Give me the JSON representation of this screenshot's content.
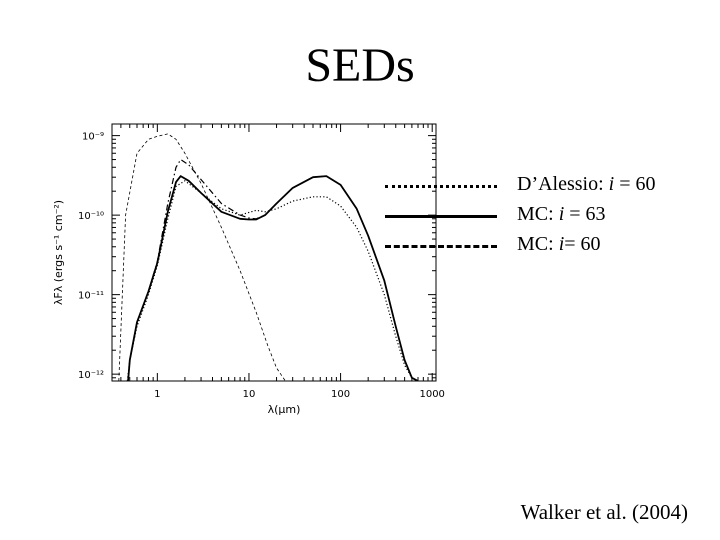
{
  "slide": {
    "title": "SEDs",
    "citation": "Walker et al. (2004)"
  },
  "legend": [
    {
      "prefix": "D’Alessio: ",
      "var": "i",
      "suffix": " = 60",
      "style": "dotted"
    },
    {
      "prefix": "MC: ",
      "var": "i",
      "suffix": " = 63",
      "style": "solid"
    },
    {
      "prefix": "MC: ",
      "var": "i",
      "suffix": "= 60",
      "style": "dashdot"
    }
  ],
  "chart_data": {
    "type": "line",
    "xscale": "log",
    "yscale": "log",
    "xlim": [
      0.32,
      1100
    ],
    "ylim": [
      8.2e-13,
      1.4e-09
    ],
    "xticks": [
      {
        "value": 1,
        "label": "1"
      },
      {
        "value": 10,
        "label": "10"
      },
      {
        "value": 100,
        "label": "100"
      },
      {
        "value": 1000,
        "label": "1000"
      }
    ],
    "yticks": [
      {
        "value": 1e-12,
        "label": "10⁻¹²"
      },
      {
        "value": 1e-11,
        "label": "10⁻¹¹"
      },
      {
        "value": 1e-10,
        "label": "10⁻¹⁰"
      },
      {
        "value": 1e-09,
        "label": "10⁻⁹"
      }
    ],
    "xlabel": "λ(μm)",
    "ylabel": "λFλ (ergs s⁻¹ cm⁻²)",
    "grid": false,
    "series": [
      {
        "style": "dotted",
        "x": [
          0.47,
          0.5,
          0.6,
          0.8,
          1.0,
          1.3,
          1.6,
          2.0,
          3.0,
          5.0,
          8.0,
          12,
          15,
          20,
          30,
          50,
          70,
          100,
          150,
          200,
          300,
          400,
          500,
          600,
          700
        ],
        "y": [
          8.2e-13,
          1.5e-12,
          4e-12,
          1e-11,
          2.3e-11,
          9e-11,
          2.3e-10,
          2.7e-10,
          1.9e-10,
          1.2e-10,
          1e-10,
          1.15e-10,
          1.1e-10,
          1.2e-10,
          1.5e-10,
          1.7e-10,
          1.7e-10,
          1.3e-10,
          7e-11,
          3.5e-11,
          1e-11,
          3e-12,
          1.3e-12,
          9e-13,
          8.2e-13
        ]
      },
      {
        "style": "solid",
        "x": [
          0.48,
          0.5,
          0.6,
          0.8,
          1.0,
          1.3,
          1.6,
          1.8,
          2.2,
          3.0,
          5.0,
          8.0,
          10,
          12,
          15,
          20,
          30,
          50,
          70,
          100,
          150,
          200,
          300,
          400,
          500,
          600,
          700
        ],
        "y": [
          8.2e-13,
          1.5e-12,
          4.5e-12,
          1.1e-11,
          2.5e-11,
          1.1e-10,
          2.6e-10,
          3.1e-10,
          2.7e-10,
          1.9e-10,
          1.1e-10,
          9e-11,
          8.8e-11,
          8.8e-11,
          1e-10,
          1.4e-10,
          2.2e-10,
          3e-10,
          3.1e-10,
          2.4e-10,
          1.2e-10,
          5.5e-11,
          1.5e-11,
          4e-12,
          1.5e-12,
          9e-13,
          8.2e-13
        ]
      },
      {
        "style": "dashdot",
        "x": [
          0.48,
          0.5,
          0.6,
          0.8,
          1.0,
          1.3,
          1.6,
          1.8,
          2.2,
          3.0,
          5.0,
          8.0,
          10,
          12,
          15,
          20,
          30,
          50,
          70,
          100,
          150,
          200,
          300,
          400,
          500,
          600,
          700
        ],
        "y": [
          8.2e-13,
          1.5e-12,
          4.5e-12,
          1.1e-11,
          2.6e-11,
          1.4e-10,
          4e-10,
          5e-10,
          4.3e-10,
          2.8e-10,
          1.4e-10,
          1e-10,
          9.2e-11,
          9e-11,
          1e-10,
          1.4e-10,
          2.2e-10,
          3e-10,
          3.1e-10,
          2.4e-10,
          1.2e-10,
          5.5e-11,
          1.5e-11,
          4e-12,
          1.5e-12,
          9e-13,
          8.2e-13
        ]
      },
      {
        "style": "thin-dashed",
        "x": [
          0.38,
          0.45,
          0.6,
          0.8,
          1.0,
          1.3,
          1.6,
          2.0,
          3.0,
          5.0,
          8.0,
          12,
          16,
          20,
          25
        ],
        "y": [
          8.2e-13,
          1e-10,
          6e-10,
          9e-10,
          9.8e-10,
          1.05e-09,
          9e-10,
          6e-10,
          2.5e-10,
          7e-11,
          2e-11,
          6e-12,
          2.3e-12,
          1.2e-12,
          8.2e-13
        ]
      }
    ]
  }
}
